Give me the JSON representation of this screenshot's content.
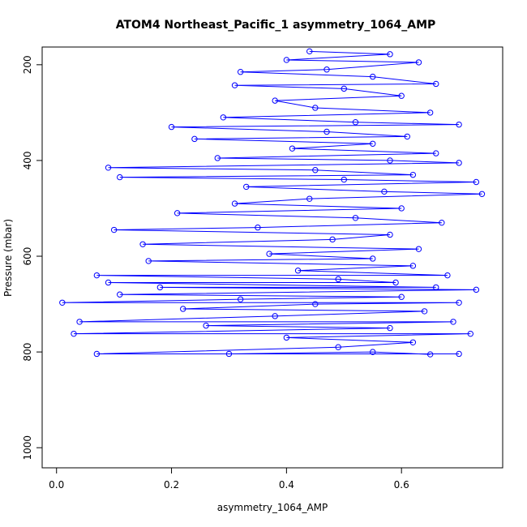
{
  "chart_data": {
    "type": "line",
    "title": "ATOM4 Northeast_Pacific_1 asymmetry_1064_AMP",
    "xlabel": "asymmetry_1064_AMP",
    "ylabel": "Pressure (mbar)",
    "color": "#0000ff",
    "marker": "open-circle",
    "y_inverted": true,
    "grid": false,
    "x": [
      0.44,
      0.58,
      0.4,
      0.63,
      0.47,
      0.32,
      0.55,
      0.66,
      0.31,
      0.5,
      0.6,
      0.38,
      0.45,
      0.65,
      0.29,
      0.52,
      0.7,
      0.2,
      0.47,
      0.61,
      0.24,
      0.55,
      0.41,
      0.66,
      0.28,
      0.58,
      0.7,
      0.09,
      0.45,
      0.62,
      0.11,
      0.5,
      0.73,
      0.33,
      0.57,
      0.74,
      0.44,
      0.31,
      0.6,
      0.21,
      0.52,
      0.67,
      0.35,
      0.1,
      0.58,
      0.48,
      0.15,
      0.63,
      0.37,
      0.55,
      0.16,
      0.62,
      0.42,
      0.68,
      0.07,
      0.49,
      0.59,
      0.09,
      0.66,
      0.18,
      0.73,
      0.11,
      0.6,
      0.32,
      0.01,
      0.7,
      0.45,
      0.22,
      0.64,
      0.38,
      0.04,
      0.69,
      0.26,
      0.58,
      0.03,
      0.72,
      0.4,
      0.62,
      0.49,
      0.07,
      0.7,
      0.3,
      0.55,
      0.65
    ],
    "values": [
      172,
      178,
      190,
      195,
      210,
      215,
      225,
      240,
      243,
      250,
      265,
      275,
      290,
      300,
      310,
      320,
      325,
      330,
      340,
      350,
      355,
      365,
      375,
      385,
      395,
      400,
      405,
      415,
      420,
      430,
      435,
      440,
      445,
      455,
      465,
      470,
      480,
      490,
      500,
      510,
      520,
      530,
      540,
      545,
      555,
      565,
      575,
      585,
      595,
      605,
      610,
      620,
      630,
      640,
      640,
      648,
      655,
      655,
      665,
      665,
      670,
      680,
      685,
      690,
      697,
      697,
      700,
      710,
      715,
      725,
      737,
      737,
      745,
      750,
      762,
      762,
      770,
      780,
      790,
      804,
      804,
      804,
      800,
      805
    ],
    "xlim": [
      -0.025,
      0.776
    ],
    "ylim": [
      1042,
      163
    ],
    "xticks": [
      {
        "value": 0,
        "label": "0.0"
      },
      0.2,
      0.4,
      0.6
    ],
    "yticks": [
      200,
      400,
      600,
      800,
      1000
    ]
  }
}
